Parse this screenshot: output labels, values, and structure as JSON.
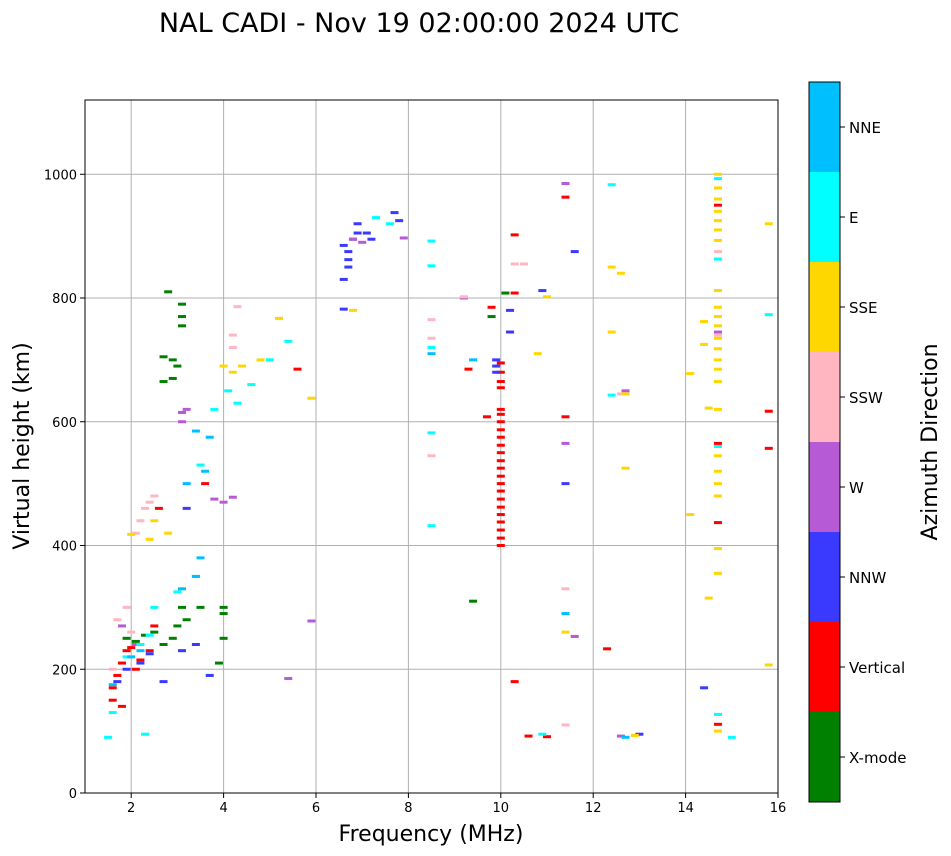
{
  "chart_data": {
    "type": "scatter",
    "title": "NAL CADI - Nov 19 02:00:00 2024 UTC",
    "xlabel": "Frequency (MHz)",
    "ylabel": "Virtual height (km)",
    "xlim": [
      1,
      16
    ],
    "ylim": [
      0,
      1120
    ],
    "xticks": [
      2,
      4,
      6,
      8,
      10,
      12,
      14,
      16
    ],
    "yticks": [
      0,
      200,
      400,
      600,
      800,
      1000
    ],
    "grid": true,
    "colorbar": {
      "label": "Azimuth Direction",
      "categories": [
        {
          "name": "X-mode",
          "color": "#008000"
        },
        {
          "name": "Vertical",
          "color": "#ff0000"
        },
        {
          "name": "NNW",
          "color": "#3a3aff"
        },
        {
          "name": "W",
          "color": "#b65ad6"
        },
        {
          "name": "SSW",
          "color": "#ffb6c1"
        },
        {
          "name": "SSE",
          "color": "#ffd700"
        },
        {
          "name": "E",
          "color": "#00ffff"
        },
        {
          "name": "NNE",
          "color": "#00bfff"
        }
      ]
    },
    "series": [
      {
        "name": "X-mode",
        "points": [
          [
            1.9,
            250
          ],
          [
            2.1,
            245
          ],
          [
            2.3,
            255
          ],
          [
            2.5,
            260
          ],
          [
            2.7,
            240
          ],
          [
            2.9,
            250
          ],
          [
            3.0,
            270
          ],
          [
            3.1,
            300
          ],
          [
            3.2,
            280
          ],
          [
            3.5,
            300
          ],
          [
            4.0,
            300
          ],
          [
            4.0,
            290
          ],
          [
            4.0,
            250
          ],
          [
            3.9,
            210
          ],
          [
            2.7,
            665
          ],
          [
            2.9,
            670
          ],
          [
            2.9,
            700
          ],
          [
            3.0,
            690
          ],
          [
            2.7,
            705
          ],
          [
            2.8,
            810
          ],
          [
            3.1,
            790
          ],
          [
            3.1,
            770
          ],
          [
            3.1,
            755
          ],
          [
            9.4,
            310
          ],
          [
            9.8,
            770
          ],
          [
            10.1,
            808
          ]
        ]
      },
      {
        "name": "Vertical",
        "points": [
          [
            1.6,
            170
          ],
          [
            1.6,
            150
          ],
          [
            1.7,
            190
          ],
          [
            1.8,
            210
          ],
          [
            1.9,
            230
          ],
          [
            2.0,
            235
          ],
          [
            2.1,
            200
          ],
          [
            2.2,
            215
          ],
          [
            2.4,
            230
          ],
          [
            2.5,
            270
          ],
          [
            2.6,
            460
          ],
          [
            1.8,
            140
          ],
          [
            3.6,
            500
          ],
          [
            5.6,
            685
          ],
          [
            9.3,
            685
          ],
          [
            9.7,
            608
          ],
          [
            9.8,
            785
          ],
          [
            10.3,
            902
          ],
          [
            10.3,
            808
          ],
          [
            10.3,
            180
          ],
          [
            10.6,
            92
          ],
          [
            11.0,
            91
          ],
          [
            11.4,
            963
          ],
          [
            11.4,
            608
          ],
          [
            12.3,
            233
          ],
          [
            14.7,
            950
          ],
          [
            14.7,
            565
          ],
          [
            14.7,
            437
          ],
          [
            14.7,
            111
          ],
          [
            15.8,
            617
          ],
          [
            15.8,
            557
          ],
          [
            10.0,
            400
          ],
          [
            10.0,
            412
          ],
          [
            10.0,
            425
          ],
          [
            10.0,
            438
          ],
          [
            10.0,
            450
          ],
          [
            10.0,
            462
          ],
          [
            10.0,
            475
          ],
          [
            10.0,
            488
          ],
          [
            10.0,
            500
          ],
          [
            10.0,
            512
          ],
          [
            10.0,
            525
          ],
          [
            10.0,
            537
          ],
          [
            10.0,
            550
          ],
          [
            10.0,
            562
          ],
          [
            10.0,
            575
          ],
          [
            10.0,
            587
          ],
          [
            10.0,
            600
          ],
          [
            10.0,
            612
          ],
          [
            10.0,
            620
          ],
          [
            10.0,
            655
          ],
          [
            10.0,
            665
          ],
          [
            10.0,
            680
          ],
          [
            10.0,
            695
          ]
        ]
      },
      {
        "name": "NNW",
        "points": [
          [
            1.7,
            180
          ],
          [
            1.9,
            200
          ],
          [
            2.2,
            210
          ],
          [
            2.4,
            225
          ],
          [
            2.7,
            180
          ],
          [
            3.1,
            230
          ],
          [
            3.4,
            240
          ],
          [
            3.7,
            190
          ],
          [
            3.2,
            460
          ],
          [
            6.6,
            782
          ],
          [
            6.6,
            830
          ],
          [
            6.7,
            850
          ],
          [
            6.7,
            862
          ],
          [
            6.7,
            875
          ],
          [
            6.6,
            885
          ],
          [
            6.8,
            895
          ],
          [
            6.9,
            905
          ],
          [
            7.1,
            905
          ],
          [
            7.2,
            895
          ],
          [
            6.9,
            920
          ],
          [
            7.7,
            938
          ],
          [
            7.8,
            925
          ],
          [
            10.2,
            745
          ],
          [
            10.2,
            780
          ],
          [
            10.9,
            812
          ],
          [
            11.4,
            500
          ],
          [
            11.6,
            875
          ],
          [
            14.4,
            170
          ],
          [
            13.0,
            95
          ],
          [
            9.9,
            700
          ],
          [
            9.9,
            690
          ],
          [
            9.9,
            680
          ]
        ]
      },
      {
        "name": "W",
        "points": [
          [
            1.8,
            270
          ],
          [
            2.1,
            240
          ],
          [
            3.1,
            600
          ],
          [
            3.1,
            615
          ],
          [
            3.2,
            620
          ],
          [
            3.8,
            475
          ],
          [
            4.2,
            478
          ],
          [
            4.0,
            470
          ],
          [
            5.9,
            278
          ],
          [
            5.4,
            185
          ],
          [
            6.8,
            895
          ],
          [
            7.0,
            890
          ],
          [
            7.9,
            897
          ],
          [
            9.2,
            800
          ],
          [
            11.4,
            985
          ],
          [
            11.4,
            565
          ],
          [
            11.6,
            253
          ],
          [
            14.7,
            745
          ],
          [
            12.7,
            650
          ],
          [
            12.6,
            92
          ]
        ]
      },
      {
        "name": "SSW",
        "points": [
          [
            1.6,
            200
          ],
          [
            1.7,
            280
          ],
          [
            1.9,
            300
          ],
          [
            2.0,
            260
          ],
          [
            2.1,
            420
          ],
          [
            2.2,
            440
          ],
          [
            2.3,
            460
          ],
          [
            2.4,
            470
          ],
          [
            2.5,
            480
          ],
          [
            4.2,
            740
          ],
          [
            4.2,
            720
          ],
          [
            4.3,
            786
          ],
          [
            8.5,
            765
          ],
          [
            8.5,
            735
          ],
          [
            8.5,
            545
          ],
          [
            9.2,
            802
          ],
          [
            10.5,
            855
          ],
          [
            10.3,
            855
          ],
          [
            11.4,
            330
          ],
          [
            11.4,
            110
          ],
          [
            12.6,
            645
          ],
          [
            14.7,
            740
          ],
          [
            14.7,
            875
          ]
        ]
      },
      {
        "name": "SSE",
        "points": [
          [
            2.0,
            418
          ],
          [
            2.4,
            410
          ],
          [
            2.5,
            440
          ],
          [
            2.8,
            420
          ],
          [
            4.0,
            690
          ],
          [
            4.2,
            680
          ],
          [
            4.4,
            690
          ],
          [
            4.8,
            700
          ],
          [
            5.2,
            767
          ],
          [
            5.9,
            638
          ],
          [
            6.8,
            780
          ],
          [
            10.8,
            710
          ],
          [
            11.0,
            802
          ],
          [
            11.4,
            260
          ],
          [
            12.4,
            850
          ],
          [
            12.6,
            840
          ],
          [
            12.4,
            745
          ],
          [
            12.7,
            525
          ],
          [
            12.7,
            645
          ],
          [
            12.9,
            93
          ],
          [
            14.1,
            678
          ],
          [
            14.1,
            450
          ],
          [
            14.4,
            762
          ],
          [
            14.4,
            725
          ],
          [
            14.5,
            622
          ],
          [
            14.5,
            315
          ],
          [
            14.7,
            1000
          ],
          [
            14.7,
            978
          ],
          [
            14.7,
            960
          ],
          [
            14.7,
            940
          ],
          [
            14.7,
            925
          ],
          [
            14.7,
            910
          ],
          [
            14.7,
            893
          ],
          [
            14.7,
            812
          ],
          [
            14.7,
            785
          ],
          [
            14.7,
            770
          ],
          [
            14.7,
            755
          ],
          [
            14.7,
            735
          ],
          [
            14.7,
            718
          ],
          [
            14.7,
            700
          ],
          [
            14.7,
            685
          ],
          [
            14.7,
            665
          ],
          [
            14.7,
            620
          ],
          [
            14.7,
            545
          ],
          [
            14.7,
            520
          ],
          [
            14.7,
            500
          ],
          [
            14.7,
            480
          ],
          [
            14.7,
            395
          ],
          [
            14.7,
            355
          ],
          [
            14.7,
            100
          ],
          [
            15.8,
            920
          ],
          [
            15.8,
            207
          ]
        ]
      },
      {
        "name": "E",
        "points": [
          [
            1.6,
            130
          ],
          [
            1.9,
            220
          ],
          [
            2.2,
            240
          ],
          [
            2.4,
            255
          ],
          [
            2.5,
            300
          ],
          [
            3.0,
            325
          ],
          [
            3.4,
            350
          ],
          [
            3.5,
            530
          ],
          [
            3.8,
            620
          ],
          [
            4.1,
            650
          ],
          [
            4.3,
            630
          ],
          [
            4.6,
            660
          ],
          [
            5.0,
            700
          ],
          [
            5.4,
            730
          ],
          [
            7.3,
            930
          ],
          [
            7.6,
            920
          ],
          [
            8.5,
            892
          ],
          [
            8.5,
            852
          ],
          [
            8.5,
            720
          ],
          [
            8.5,
            582
          ],
          [
            8.5,
            432
          ],
          [
            12.4,
            983
          ],
          [
            12.4,
            643
          ],
          [
            14.7,
            993
          ],
          [
            14.7,
            863
          ],
          [
            14.7,
            560
          ],
          [
            14.7,
            127
          ],
          [
            15.0,
            90
          ],
          [
            15.8,
            773
          ],
          [
            10.9,
            95
          ],
          [
            1.5,
            90
          ],
          [
            2.3,
            95
          ]
        ]
      },
      {
        "name": "NNE",
        "points": [
          [
            1.6,
            175
          ],
          [
            2.0,
            220
          ],
          [
            2.2,
            230
          ],
          [
            3.1,
            330
          ],
          [
            3.4,
            350
          ],
          [
            3.5,
            380
          ],
          [
            3.6,
            520
          ],
          [
            3.4,
            585
          ],
          [
            3.7,
            575
          ],
          [
            3.2,
            500
          ],
          [
            8.5,
            710
          ],
          [
            9.4,
            700
          ],
          [
            11.4,
            290
          ],
          [
            12.7,
            90
          ]
        ]
      }
    ]
  }
}
